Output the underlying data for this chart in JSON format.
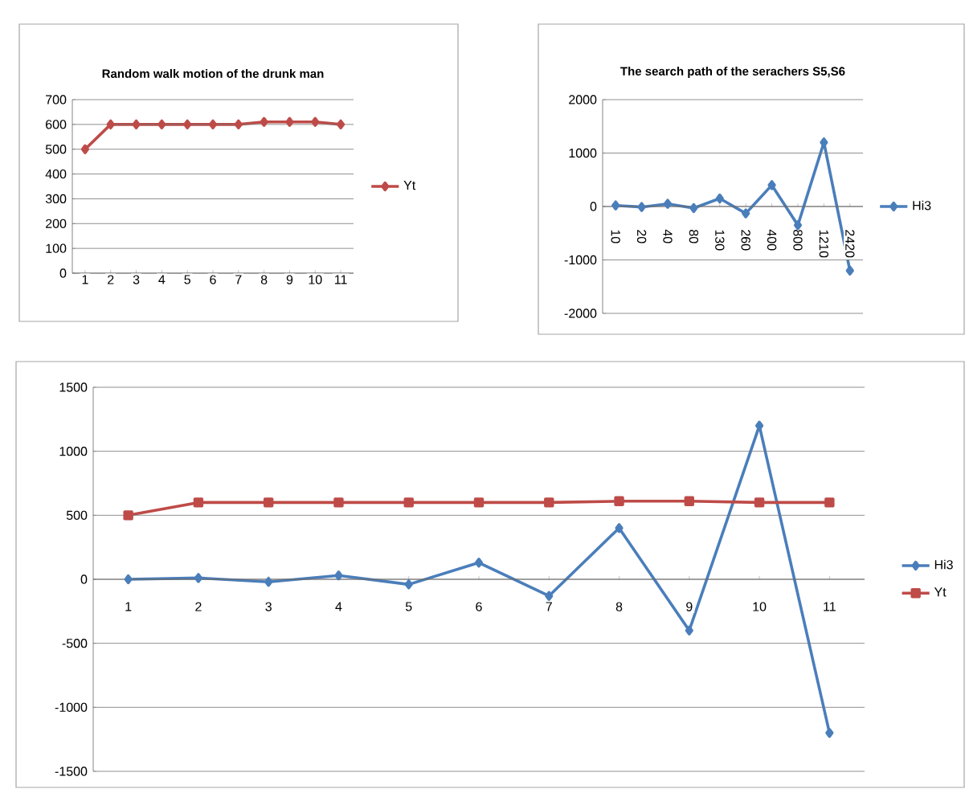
{
  "chart_data": [
    {
      "type": "line",
      "title": "Random walk motion of the drunk man",
      "categories": [
        "1",
        "2",
        "3",
        "4",
        "5",
        "6",
        "7",
        "8",
        "9",
        "10",
        "11"
      ],
      "series": [
        {
          "name": "Yt",
          "color": "#be4b48",
          "marker": "diamond",
          "values": [
            500,
            600,
            600,
            600,
            600,
            600,
            600,
            610,
            610,
            610,
            600
          ]
        }
      ],
      "ylim": [
        0,
        700
      ],
      "yticks": [
        0,
        100,
        200,
        300,
        400,
        500,
        600,
        700
      ],
      "grid": "y",
      "legend": "right"
    },
    {
      "type": "line",
      "title": "The search  path of the serachers S5,S6",
      "categories": [
        "10",
        "20",
        "40",
        "80",
        "130",
        "260",
        "400",
        "800",
        "1210",
        "2420"
      ],
      "series": [
        {
          "name": "Hi3",
          "color": "#4a7ebb",
          "marker": "diamond",
          "values": [
            20,
            -10,
            50,
            -30,
            150,
            -130,
            400,
            -350,
            1200,
            -1200
          ]
        }
      ],
      "ylim": [
        -2000,
        2000
      ],
      "yticks": [
        -2000,
        -1000,
        0,
        1000,
        2000
      ],
      "grid": "y",
      "legend": "right"
    },
    {
      "type": "line",
      "categories": [
        "1",
        "2",
        "3",
        "4",
        "5",
        "6",
        "7",
        "8",
        "9",
        "10",
        "11"
      ],
      "series": [
        {
          "name": "Hi3",
          "color": "#4a7ebb",
          "marker": "diamond",
          "values": [
            0,
            10,
            -20,
            30,
            -40,
            130,
            -130,
            400,
            -400,
            1200,
            -1200
          ]
        },
        {
          "name": "Yt",
          "color": "#be4b48",
          "marker": "square",
          "values": [
            500,
            600,
            600,
            600,
            600,
            600,
            600,
            610,
            610,
            600,
            600
          ]
        }
      ],
      "ylim": [
        -1500,
        1500
      ],
      "yticks": [
        -1500,
        -1000,
        -500,
        0,
        500,
        1000,
        1500
      ],
      "grid": "y",
      "legend": "right"
    }
  ]
}
